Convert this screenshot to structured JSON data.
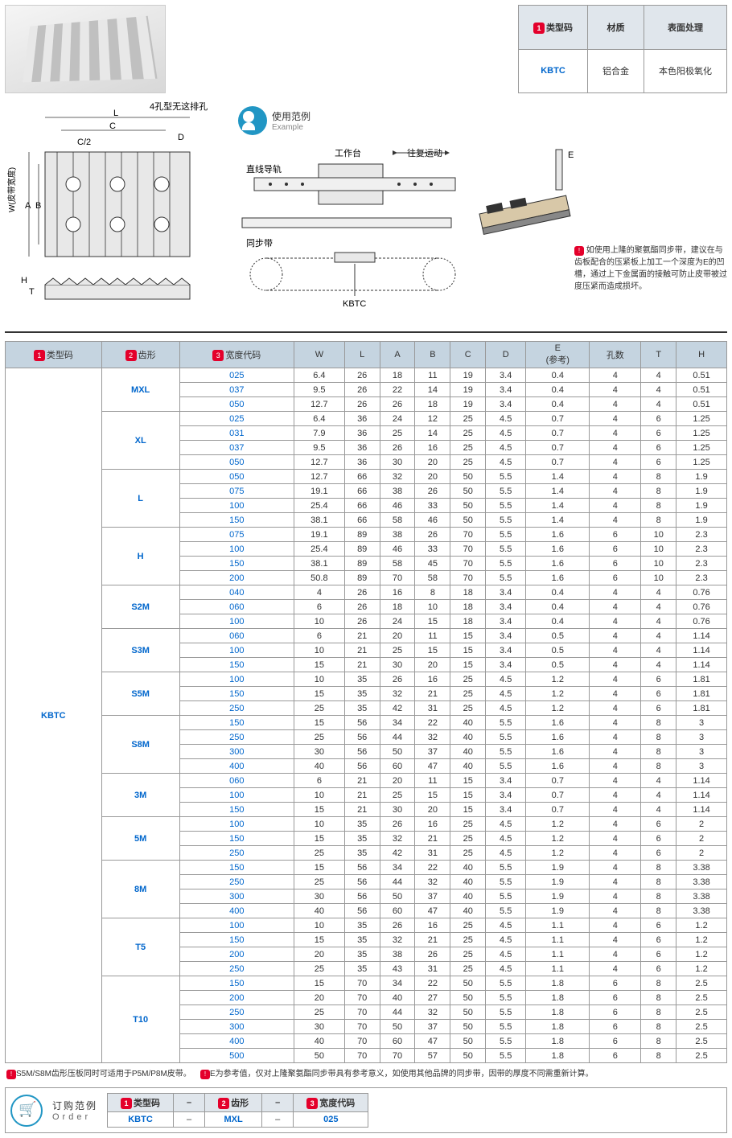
{
  "topTable": {
    "headers": [
      "类型码",
      "材质",
      "表面处理"
    ],
    "row": [
      "KBTC",
      "铝合金",
      "本色阳极氧化"
    ]
  },
  "exampleLabel": {
    "cn": "使用范例",
    "en": "Example"
  },
  "diagramLabels": {
    "holeNote": "4孔型无这排孔",
    "worktable": "工作台",
    "recip": "往复运动",
    "rail": "直线导轨",
    "belt": "同步带",
    "kbtc": "KBTC",
    "wLabel": "W(皮带宽度)"
  },
  "usageNote": "如使用上隆的聚氨酯同步带，建议在与齿板配合的压紧板上加工一个深度为E的凹槽，通过上下金属面的接触可防止皮带被过度压紧而造成损坏。",
  "mainTable": {
    "headers": [
      "类型码",
      "齿形",
      "宽度代码",
      "W",
      "L",
      "A",
      "B",
      "C",
      "D",
      "E\n(参考)",
      "孔数",
      "T",
      "H"
    ],
    "typeCode": "KBTC",
    "groups": [
      {
        "tooth": "MXL",
        "rows": [
          [
            "025",
            "6.4",
            "26",
            "18",
            "11",
            "19",
            "3.4",
            "0.4",
            "4",
            "4",
            "0.51"
          ],
          [
            "037",
            "9.5",
            "26",
            "22",
            "14",
            "19",
            "3.4",
            "0.4",
            "4",
            "4",
            "0.51"
          ],
          [
            "050",
            "12.7",
            "26",
            "26",
            "18",
            "19",
            "3.4",
            "0.4",
            "4",
            "4",
            "0.51"
          ]
        ]
      },
      {
        "tooth": "XL",
        "rows": [
          [
            "025",
            "6.4",
            "36",
            "24",
            "12",
            "25",
            "4.5",
            "0.7",
            "4",
            "6",
            "1.25"
          ],
          [
            "031",
            "7.9",
            "36",
            "25",
            "14",
            "25",
            "4.5",
            "0.7",
            "4",
            "6",
            "1.25"
          ],
          [
            "037",
            "9.5",
            "36",
            "26",
            "16",
            "25",
            "4.5",
            "0.7",
            "4",
            "6",
            "1.25"
          ],
          [
            "050",
            "12.7",
            "36",
            "30",
            "20",
            "25",
            "4.5",
            "0.7",
            "4",
            "6",
            "1.25"
          ]
        ]
      },
      {
        "tooth": "L",
        "rows": [
          [
            "050",
            "12.7",
            "66",
            "32",
            "20",
            "50",
            "5.5",
            "1.4",
            "4",
            "8",
            "1.9"
          ],
          [
            "075",
            "19.1",
            "66",
            "38",
            "26",
            "50",
            "5.5",
            "1.4",
            "4",
            "8",
            "1.9"
          ],
          [
            "100",
            "25.4",
            "66",
            "46",
            "33",
            "50",
            "5.5",
            "1.4",
            "4",
            "8",
            "1.9"
          ],
          [
            "150",
            "38.1",
            "66",
            "58",
            "46",
            "50",
            "5.5",
            "1.4",
            "4",
            "8",
            "1.9"
          ]
        ]
      },
      {
        "tooth": "H",
        "rows": [
          [
            "075",
            "19.1",
            "89",
            "38",
            "26",
            "70",
            "5.5",
            "1.6",
            "6",
            "10",
            "2.3"
          ],
          [
            "100",
            "25.4",
            "89",
            "46",
            "33",
            "70",
            "5.5",
            "1.6",
            "6",
            "10",
            "2.3"
          ],
          [
            "150",
            "38.1",
            "89",
            "58",
            "45",
            "70",
            "5.5",
            "1.6",
            "6",
            "10",
            "2.3"
          ],
          [
            "200",
            "50.8",
            "89",
            "70",
            "58",
            "70",
            "5.5",
            "1.6",
            "6",
            "10",
            "2.3"
          ]
        ]
      },
      {
        "tooth": "S2M",
        "rows": [
          [
            "040",
            "4",
            "26",
            "16",
            "8",
            "18",
            "3.4",
            "0.4",
            "4",
            "4",
            "0.76"
          ],
          [
            "060",
            "6",
            "26",
            "18",
            "10",
            "18",
            "3.4",
            "0.4",
            "4",
            "4",
            "0.76"
          ],
          [
            "100",
            "10",
            "26",
            "24",
            "15",
            "18",
            "3.4",
            "0.4",
            "4",
            "4",
            "0.76"
          ]
        ]
      },
      {
        "tooth": "S3M",
        "rows": [
          [
            "060",
            "6",
            "21",
            "20",
            "11",
            "15",
            "3.4",
            "0.5",
            "4",
            "4",
            "1.14"
          ],
          [
            "100",
            "10",
            "21",
            "25",
            "15",
            "15",
            "3.4",
            "0.5",
            "4",
            "4",
            "1.14"
          ],
          [
            "150",
            "15",
            "21",
            "30",
            "20",
            "15",
            "3.4",
            "0.5",
            "4",
            "4",
            "1.14"
          ]
        ]
      },
      {
        "tooth": "S5M",
        "rows": [
          [
            "100",
            "10",
            "35",
            "26",
            "16",
            "25",
            "4.5",
            "1.2",
            "4",
            "6",
            "1.81"
          ],
          [
            "150",
            "15",
            "35",
            "32",
            "21",
            "25",
            "4.5",
            "1.2",
            "4",
            "6",
            "1.81"
          ],
          [
            "250",
            "25",
            "35",
            "42",
            "31",
            "25",
            "4.5",
            "1.2",
            "4",
            "6",
            "1.81"
          ]
        ]
      },
      {
        "tooth": "S8M",
        "rows": [
          [
            "150",
            "15",
            "56",
            "34",
            "22",
            "40",
            "5.5",
            "1.6",
            "4",
            "8",
            "3"
          ],
          [
            "250",
            "25",
            "56",
            "44",
            "32",
            "40",
            "5.5",
            "1.6",
            "4",
            "8",
            "3"
          ],
          [
            "300",
            "30",
            "56",
            "50",
            "37",
            "40",
            "5.5",
            "1.6",
            "4",
            "8",
            "3"
          ],
          [
            "400",
            "40",
            "56",
            "60",
            "47",
            "40",
            "5.5",
            "1.6",
            "4",
            "8",
            "3"
          ]
        ]
      },
      {
        "tooth": "3M",
        "rows": [
          [
            "060",
            "6",
            "21",
            "20",
            "11",
            "15",
            "3.4",
            "0.7",
            "4",
            "4",
            "1.14"
          ],
          [
            "100",
            "10",
            "21",
            "25",
            "15",
            "15",
            "3.4",
            "0.7",
            "4",
            "4",
            "1.14"
          ],
          [
            "150",
            "15",
            "21",
            "30",
            "20",
            "15",
            "3.4",
            "0.7",
            "4",
            "4",
            "1.14"
          ]
        ]
      },
      {
        "tooth": "5M",
        "rows": [
          [
            "100",
            "10",
            "35",
            "26",
            "16",
            "25",
            "4.5",
            "1.2",
            "4",
            "6",
            "2"
          ],
          [
            "150",
            "15",
            "35",
            "32",
            "21",
            "25",
            "4.5",
            "1.2",
            "4",
            "6",
            "2"
          ],
          [
            "250",
            "25",
            "35",
            "42",
            "31",
            "25",
            "4.5",
            "1.2",
            "4",
            "6",
            "2"
          ]
        ]
      },
      {
        "tooth": "8M",
        "rows": [
          [
            "150",
            "15",
            "56",
            "34",
            "22",
            "40",
            "5.5",
            "1.9",
            "4",
            "8",
            "3.38"
          ],
          [
            "250",
            "25",
            "56",
            "44",
            "32",
            "40",
            "5.5",
            "1.9",
            "4",
            "8",
            "3.38"
          ],
          [
            "300",
            "30",
            "56",
            "50",
            "37",
            "40",
            "5.5",
            "1.9",
            "4",
            "8",
            "3.38"
          ],
          [
            "400",
            "40",
            "56",
            "60",
            "47",
            "40",
            "5.5",
            "1.9",
            "4",
            "8",
            "3.38"
          ]
        ]
      },
      {
        "tooth": "T5",
        "rows": [
          [
            "100",
            "10",
            "35",
            "26",
            "16",
            "25",
            "4.5",
            "1.1",
            "4",
            "6",
            "1.2"
          ],
          [
            "150",
            "15",
            "35",
            "32",
            "21",
            "25",
            "4.5",
            "1.1",
            "4",
            "6",
            "1.2"
          ],
          [
            "200",
            "20",
            "35",
            "38",
            "26",
            "25",
            "4.5",
            "1.1",
            "4",
            "6",
            "1.2"
          ],
          [
            "250",
            "25",
            "35",
            "43",
            "31",
            "25",
            "4.5",
            "1.1",
            "4",
            "6",
            "1.2"
          ]
        ]
      },
      {
        "tooth": "T10",
        "rows": [
          [
            "150",
            "15",
            "70",
            "34",
            "22",
            "50",
            "5.5",
            "1.8",
            "6",
            "8",
            "2.5"
          ],
          [
            "200",
            "20",
            "70",
            "40",
            "27",
            "50",
            "5.5",
            "1.8",
            "6",
            "8",
            "2.5"
          ],
          [
            "250",
            "25",
            "70",
            "44",
            "32",
            "50",
            "5.5",
            "1.8",
            "6",
            "8",
            "2.5"
          ],
          [
            "300",
            "30",
            "70",
            "50",
            "37",
            "50",
            "5.5",
            "1.8",
            "6",
            "8",
            "2.5"
          ],
          [
            "400",
            "40",
            "70",
            "60",
            "47",
            "50",
            "5.5",
            "1.8",
            "6",
            "8",
            "2.5"
          ],
          [
            "500",
            "50",
            "70",
            "70",
            "57",
            "50",
            "5.5",
            "1.8",
            "6",
            "8",
            "2.5"
          ]
        ]
      }
    ]
  },
  "footnotes": [
    "S5M/S8M齿形压板同时可适用于P5M/P8M皮带。",
    "E为参考值，仅对上隆聚氨酯同步带具有参考意义，如使用其他品牌的同步带，因带的厚度不同需重新计算。"
  ],
  "orderExample": {
    "labelCn": "订购范例",
    "labelEn": "Order",
    "headers": [
      "类型码",
      "–",
      "齿形",
      "–",
      "宽度代码"
    ],
    "values": [
      "KBTC",
      "–",
      "MXL",
      "–",
      "025"
    ],
    "badges": [
      "1",
      "",
      "2",
      "",
      "3"
    ]
  }
}
